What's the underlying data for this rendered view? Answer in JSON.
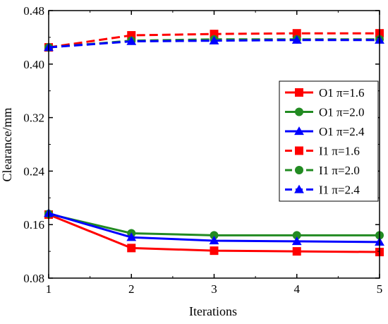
{
  "chart_data": {
    "type": "line",
    "xlabel": "Iterations",
    "ylabel": "Clearance/mm",
    "xlim": [
      1,
      5
    ],
    "ylim": [
      0.08,
      0.48
    ],
    "x_ticks": [
      "1",
      "2",
      "3",
      "4",
      "5"
    ],
    "y_ticks": [
      "0.08",
      "0.16",
      "0.24",
      "0.32",
      "0.40",
      "0.48"
    ],
    "grid": false,
    "legend_position": "right",
    "x": [
      1,
      2,
      3,
      4,
      5
    ],
    "series": [
      {
        "name": "O1 π=1.6",
        "color": "#ff0000",
        "marker": "square",
        "dash": "solid",
        "values": [
          0.175,
          0.125,
          0.121,
          0.12,
          0.119
        ]
      },
      {
        "name": "O1 π=2.0",
        "color": "#228b22",
        "marker": "circle",
        "dash": "solid",
        "values": [
          0.176,
          0.147,
          0.144,
          0.144,
          0.144
        ]
      },
      {
        "name": "O1 π=2.4",
        "color": "#0000ff",
        "marker": "triangle",
        "dash": "solid",
        "values": [
          0.177,
          0.141,
          0.136,
          0.135,
          0.134
        ]
      },
      {
        "name": "I1 π=1.6",
        "color": "#ff0000",
        "marker": "square",
        "dash": "dashed",
        "values": [
          0.425,
          0.443,
          0.445,
          0.446,
          0.446
        ]
      },
      {
        "name": "I1 π=2.0",
        "color": "#228b22",
        "marker": "circle",
        "dash": "dashed",
        "values": [
          0.425,
          0.435,
          0.437,
          0.437,
          0.437
        ]
      },
      {
        "name": "I1 π=2.4",
        "color": "#0000ff",
        "marker": "triangle",
        "dash": "dashed",
        "values": [
          0.425,
          0.434,
          0.435,
          0.436,
          0.436
        ]
      }
    ]
  }
}
